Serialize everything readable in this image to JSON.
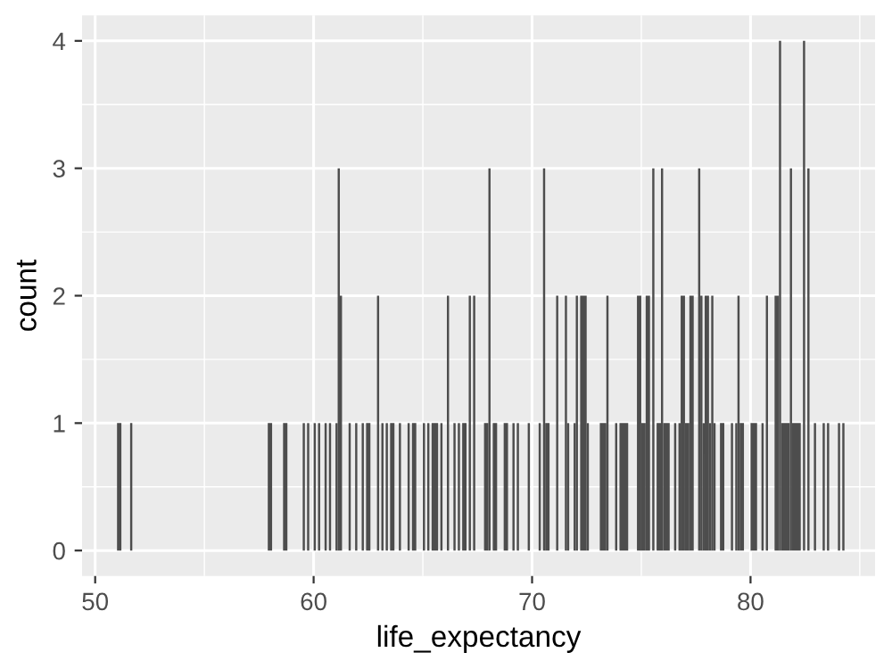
{
  "chart_data": {
    "type": "histogram",
    "xlabel": "life_expectancy",
    "ylabel": "count",
    "color": "#4d4d4d",
    "bins": [
      51.0,
      51.2,
      51.6,
      51.7,
      57.9,
      58.1,
      58.6,
      58.8,
      59.5,
      59.6,
      59.7,
      59.8,
      60.0,
      60.1,
      60.2,
      60.3,
      60.5,
      60.6,
      60.7,
      60.8,
      61.0,
      61.1,
      61.2,
      61.3,
      61.6,
      61.7,
      61.9,
      62.0,
      62.2,
      62.3,
      62.4,
      62.6,
      62.9,
      63.0,
      63.1,
      63.2,
      63.3,
      63.4,
      63.5,
      63.7,
      63.9,
      64.0,
      64.3,
      64.4,
      64.5,
      64.7,
      65.0,
      65.1,
      65.2,
      65.3,
      65.4,
      65.7,
      65.8,
      65.9,
      66.1,
      66.2,
      66.4,
      66.5,
      66.6,
      66.7,
      66.8,
      67.0,
      67.1,
      67.2,
      67.3,
      67.4,
      67.8,
      68.0,
      68.1,
      68.2,
      68.4,
      68.7,
      68.9,
      69.1,
      69.2,
      69.3,
      69.4,
      69.8,
      69.9,
      70.3,
      70.4,
      70.5,
      70.6,
      70.8,
      71.1,
      71.2,
      71.5,
      71.6,
      71.7,
      71.9,
      72.0,
      72.1,
      72.2,
      72.5,
      72.6,
      73.1,
      73.4,
      73.5,
      73.8,
      73.9,
      74.0,
      74.4,
      74.8,
      75.0,
      75.2,
      75.4,
      75.5,
      75.6,
      75.7,
      75.9,
      76.0,
      76.3,
      76.5,
      76.6,
      76.7,
      76.8,
      77.0,
      77.2,
      77.4,
      77.6,
      77.7,
      77.8,
      77.9,
      78.1,
      78.2,
      78.3,
      78.4,
      78.6,
      78.8,
      79.1,
      79.2,
      79.3,
      79.4,
      79.5,
      79.7,
      80.0,
      80.3,
      80.5,
      80.6,
      80.7,
      80.8,
      81.1,
      81.3,
      81.4,
      81.8,
      81.9,
      82.3,
      82.4,
      82.5,
      82.6,
      82.7,
      82.9,
      83.0,
      83.3,
      83.4,
      83.5,
      83.6,
      84.0,
      84.1,
      84.2,
      84.3
    ],
    "values": [
      1,
      0,
      1,
      0,
      1,
      0,
      1,
      0,
      1,
      0,
      1,
      0,
      1,
      0,
      1,
      0,
      1,
      0,
      1,
      0,
      1,
      3,
      2,
      0,
      1,
      0,
      1,
      0,
      1,
      0,
      1,
      0,
      2,
      0,
      1,
      0,
      1,
      0,
      1,
      0,
      1,
      0,
      1,
      0,
      1,
      0,
      1,
      0,
      1,
      0,
      1,
      0,
      1,
      0,
      2,
      0,
      1,
      0,
      1,
      0,
      1,
      0,
      2,
      0,
      2,
      0,
      1,
      3,
      0,
      1,
      0,
      1,
      0,
      1,
      0,
      1,
      0,
      1,
      0,
      1,
      0,
      3,
      1,
      0,
      2,
      0,
      2,
      1,
      0,
      1,
      2,
      0,
      2,
      1,
      0,
      1,
      2,
      0,
      1,
      0,
      1,
      0,
      2,
      1,
      2,
      0,
      3,
      0,
      1,
      3,
      1,
      0,
      1,
      0,
      1,
      2,
      1,
      2,
      0,
      3,
      2,
      1,
      2,
      1,
      2,
      1,
      0,
      1,
      0,
      1,
      0,
      1,
      2,
      1,
      0,
      1,
      0,
      1,
      0,
      2,
      0,
      2,
      4,
      1,
      3,
      1,
      0,
      4,
      0,
      3,
      0,
      1,
      0,
      1,
      0,
      1,
      0,
      1,
      0,
      1
    ],
    "xlim": [
      49.4,
      85.7
    ],
    "ylim": [
      -0.2,
      4.2
    ],
    "xticks": [
      50,
      60,
      70,
      80
    ],
    "yticks": [
      0,
      1,
      2,
      3,
      4
    ],
    "grid": true
  }
}
